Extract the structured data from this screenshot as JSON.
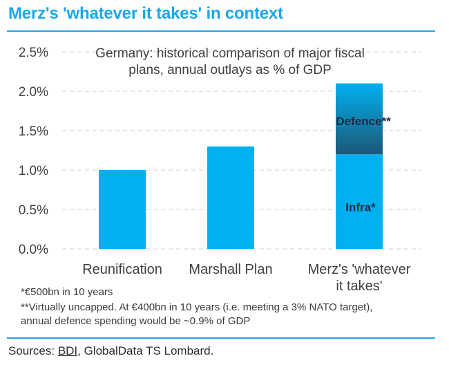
{
  "header": {
    "title": "Merz's 'whatever it takes' in context"
  },
  "chart_data": {
    "type": "bar",
    "stacked": true,
    "title_lines": [
      "Germany: historical comparison of major fiscal",
      "plans, annual outlays as % of GDP"
    ],
    "categories": [
      "Reunification",
      "Marshall Plan",
      "Merz's 'whatever it takes'"
    ],
    "category_label_lines": [
      [
        "Reunification"
      ],
      [
        "Marshall Plan"
      ],
      [
        "Merz's 'whatever",
        "it takes'"
      ]
    ],
    "series": [
      {
        "name": "Infra*",
        "values": [
          1.0,
          1.3,
          1.2
        ],
        "color": "#00b0f0"
      },
      {
        "name": "Defence**",
        "values": [
          0,
          0,
          0.9
        ],
        "gradient": [
          "#00b0f0",
          "#1d5877"
        ]
      }
    ],
    "yticks": [
      "0.0%",
      "0.5%",
      "1.0%",
      "1.5%",
      "2.0%",
      "2.5%"
    ],
    "ylim": [
      0,
      2.5
    ],
    "grid": "dashed",
    "legend": "none"
  },
  "footnotes": [
    "*€500bn in 10 years",
    "**Virtually uncapped. At €400bn in 10 years (i.e. meeting a 3% NATO target),",
    "annual defence spending would be ~0.9% of GDP"
  ],
  "sources": {
    "prefix": "Sources: ",
    "bdi": "BDI",
    "rest": ", GlobalData TS Lombard."
  }
}
